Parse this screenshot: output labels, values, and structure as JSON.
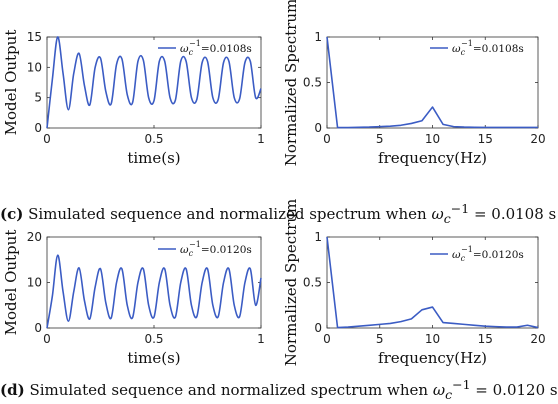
{
  "captions": [
    {
      "letter": "(c)",
      "text": " Simulated sequence and normalized spectrum when ",
      "symbol": "ω",
      "sub": "c",
      "sup": "−1",
      "value": " = 0.0108 s"
    },
    {
      "letter": "(d)",
      "text": " Simulated sequence and normalized spectrum when ",
      "symbol": "ω",
      "sub": "c",
      "sup": "−1",
      "value": " = 0.0120 s"
    }
  ],
  "chart_data": [
    {
      "type": "line",
      "xlabel": "time(s)",
      "ylabel": "Model Output",
      "xlim": [
        0,
        1
      ],
      "ylim": [
        0,
        15
      ],
      "xticks": [
        "0",
        "0.5",
        "1"
      ],
      "yticks": [
        "0",
        "5",
        "10",
        "15"
      ],
      "grid": false,
      "legend_position": "top-right",
      "series": [
        {
          "name_symbol": "ω",
          "name_sub": "c",
          "name_sup": "−1",
          "name_value": "=0.0108s",
          "color": "#3b5cc4",
          "x": [
            0,
            0.025,
            0.05,
            0.075,
            0.1,
            0.125,
            0.15,
            0.175,
            0.2,
            0.225,
            0.25,
            0.275,
            0.3,
            0.325,
            0.35,
            0.375,
            0.4,
            0.425,
            0.45,
            0.475,
            0.5,
            0.525,
            0.55,
            0.575,
            0.6,
            0.625,
            0.65,
            0.675,
            0.7,
            0.725,
            0.75,
            0.775,
            0.8,
            0.825,
            0.85,
            0.875,
            0.9,
            0.925,
            0.95,
            0.975,
            1.0
          ],
          "y": [
            0,
            8,
            15,
            9,
            3,
            9,
            12.3,
            7,
            3.8,
            10,
            11.5,
            6,
            4,
            10.5,
            11.4,
            5.5,
            4.2,
            11,
            11.2,
            5,
            4.5,
            11,
            11,
            5,
            4.6,
            11,
            11,
            5,
            4.7,
            10.8,
            11,
            5,
            4.7,
            10.8,
            11,
            5,
            4.8,
            10.8,
            11,
            5,
            6.5
          ]
        }
      ]
    },
    {
      "type": "line",
      "xlabel": "frequency(Hz)",
      "ylabel": "Normalized Spectrum",
      "xlim": [
        0,
        20
      ],
      "ylim": [
        0,
        1
      ],
      "xticks": [
        "0",
        "5",
        "10",
        "15",
        "20"
      ],
      "yticks": [
        "0",
        "0.5",
        "1"
      ],
      "grid": false,
      "legend_position": "top-right",
      "series": [
        {
          "name_symbol": "ω",
          "name_sub": "c",
          "name_sup": "−1",
          "name_value": "=0.0108s",
          "color": "#3b5cc4",
          "x": [
            0,
            1,
            2,
            3,
            4,
            5,
            6,
            7,
            8,
            9,
            10,
            11,
            12,
            13,
            14,
            15,
            16,
            17,
            18,
            19,
            20
          ],
          "y": [
            1.0,
            0.005,
            0.005,
            0.008,
            0.01,
            0.015,
            0.02,
            0.03,
            0.05,
            0.08,
            0.23,
            0.04,
            0.015,
            0.01,
            0.008,
            0.007,
            0.006,
            0.006,
            0.006,
            0.006,
            0.007
          ]
        }
      ]
    },
    {
      "type": "line",
      "xlabel": "time(s)",
      "ylabel": "Model Output",
      "xlim": [
        0,
        1
      ],
      "ylim": [
        0,
        20
      ],
      "xticks": [
        "0",
        "0.5",
        "1"
      ],
      "yticks": [
        "0",
        "10",
        "20"
      ],
      "grid": false,
      "legend_position": "top-right",
      "series": [
        {
          "name_symbol": "ω",
          "name_sub": "c",
          "name_sup": "−1",
          "name_value": "=0.0120s",
          "color": "#3b5cc4",
          "x": [
            0,
            0.025,
            0.05,
            0.075,
            0.1,
            0.125,
            0.15,
            0.175,
            0.2,
            0.225,
            0.25,
            0.275,
            0.3,
            0.325,
            0.35,
            0.375,
            0.4,
            0.425,
            0.45,
            0.475,
            0.5,
            0.525,
            0.55,
            0.575,
            0.6,
            0.625,
            0.65,
            0.675,
            0.7,
            0.725,
            0.75,
            0.775,
            0.8,
            0.825,
            0.85,
            0.875,
            0.9,
            0.925,
            0.95,
            0.975,
            1.0
          ],
          "y": [
            0,
            7,
            16,
            8,
            1.5,
            8,
            13.2,
            6,
            2,
            9,
            13,
            5.5,
            2.2,
            10,
            13,
            5,
            2.3,
            10,
            13,
            5,
            2.4,
            10,
            13,
            5,
            2.4,
            10,
            13,
            5,
            2.5,
            10,
            13,
            5,
            2.5,
            10,
            13,
            5,
            2.5,
            10,
            13,
            5,
            11
          ]
        }
      ]
    },
    {
      "type": "line",
      "xlabel": "frequency(Hz)",
      "ylabel": "Normalized Spectrum",
      "xlim": [
        0,
        20
      ],
      "ylim": [
        0,
        1
      ],
      "xticks": [
        "0",
        "5",
        "10",
        "15",
        "20"
      ],
      "yticks": [
        "0",
        "0.5",
        "1"
      ],
      "grid": false,
      "legend_position": "top-right",
      "series": [
        {
          "name_symbol": "ω",
          "name_sub": "c",
          "name_sup": "−1",
          "name_value": "=0.0120s",
          "color": "#3b5cc4",
          "x": [
            0,
            1,
            2,
            3,
            4,
            5,
            6,
            7,
            8,
            9,
            10,
            11,
            12,
            13,
            14,
            15,
            16,
            17,
            18,
            19,
            20
          ],
          "y": [
            1.0,
            0.005,
            0.01,
            0.02,
            0.03,
            0.04,
            0.05,
            0.07,
            0.1,
            0.2,
            0.23,
            0.06,
            0.05,
            0.04,
            0.03,
            0.02,
            0.015,
            0.01,
            0.01,
            0.03,
            0.005
          ]
        }
      ]
    }
  ]
}
